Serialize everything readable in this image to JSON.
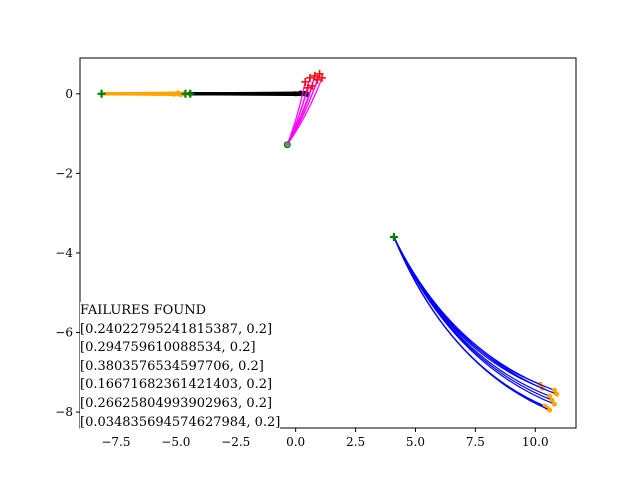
{
  "chart_data": {
    "type": "line",
    "title": "",
    "xlabel": "",
    "ylabel": "",
    "xlim": [
      -9.0,
      11.7
    ],
    "ylim": [
      -8.4,
      0.9
    ],
    "xticks": [
      -7.5,
      -5.0,
      -2.5,
      0.0,
      2.5,
      5.0,
      7.5,
      10.0
    ],
    "xtick_labels": [
      "−7.5",
      "−5.0",
      "−2.5",
      "0.0",
      "2.5",
      "5.0",
      "7.5",
      "10.0"
    ],
    "yticks": [
      0,
      -2,
      -4,
      -6,
      -8
    ],
    "ytick_labels": [
      "0",
      "−2",
      "−4",
      "−6",
      "−8"
    ],
    "grid": false,
    "legend": "none",
    "colors": {
      "orange": "#ffa500",
      "black": "#000000",
      "magenta": "#ff00ff",
      "blue": "#0000ff",
      "red": "#ff0000",
      "green": "#008000",
      "gray": "#808080"
    },
    "groups": [
      {
        "color": "orange",
        "start": [
          -8.1,
          0.0
        ],
        "ends": [
          [
            -5.0,
            0.0
          ],
          [
            -4.8,
            -0.02
          ],
          [
            -4.9,
            0.02
          ],
          [
            -4.7,
            0.0
          ],
          [
            -5.1,
            -0.01
          ]
        ]
      },
      {
        "color": "black",
        "start": [
          -4.5,
          0.0
        ],
        "ends": [
          [
            0.0,
            0.0
          ],
          [
            0.3,
            0.0
          ],
          [
            0.5,
            -0.02
          ],
          [
            0.2,
            0.02
          ],
          [
            0.4,
            0.01
          ]
        ]
      },
      {
        "color": "magenta",
        "start": [
          -0.35,
          -1.28
        ],
        "ends": [
          [
            0.4,
            0.3
          ],
          [
            0.6,
            0.4
          ],
          [
            0.8,
            0.45
          ],
          [
            1.0,
            0.5
          ],
          [
            0.7,
            0.2
          ],
          [
            0.9,
            0.35
          ],
          [
            0.5,
            0.15
          ],
          [
            1.1,
            0.4
          ]
        ],
        "end_marker_color": "red"
      },
      {
        "color": "blue",
        "start": [
          4.1,
          -3.6
        ],
        "ends": [
          [
            10.5,
            -7.9
          ],
          [
            10.8,
            -7.8
          ],
          [
            10.6,
            -7.6
          ],
          [
            10.3,
            -7.4
          ],
          [
            10.7,
            -7.7
          ],
          [
            10.9,
            -7.55
          ],
          [
            10.2,
            -7.3
          ],
          [
            10.4,
            -7.85
          ],
          [
            10.6,
            -7.95
          ],
          [
            10.8,
            -7.45
          ]
        ],
        "end_marker_color": "orange"
      }
    ],
    "start_markers": [
      [
        -8.1,
        0.0
      ],
      [
        -4.6,
        0.0
      ],
      [
        -4.4,
        0.0
      ],
      [
        4.1,
        -3.6
      ]
    ],
    "circle_markers": [
      [
        -0.35,
        -1.28
      ]
    ],
    "annotation": {
      "heading": "FAILURES FOUND",
      "lines": [
        "[0.24022795241815387, 0.2]",
        "[0.294759610088534, 0.2]",
        "[0.3803576534597706, 0.2]",
        "[0.16671682361421403, 0.2]",
        "[0.26625804993902963, 0.2]",
        "[0.034835694574627984, 0.2]"
      ]
    }
  }
}
